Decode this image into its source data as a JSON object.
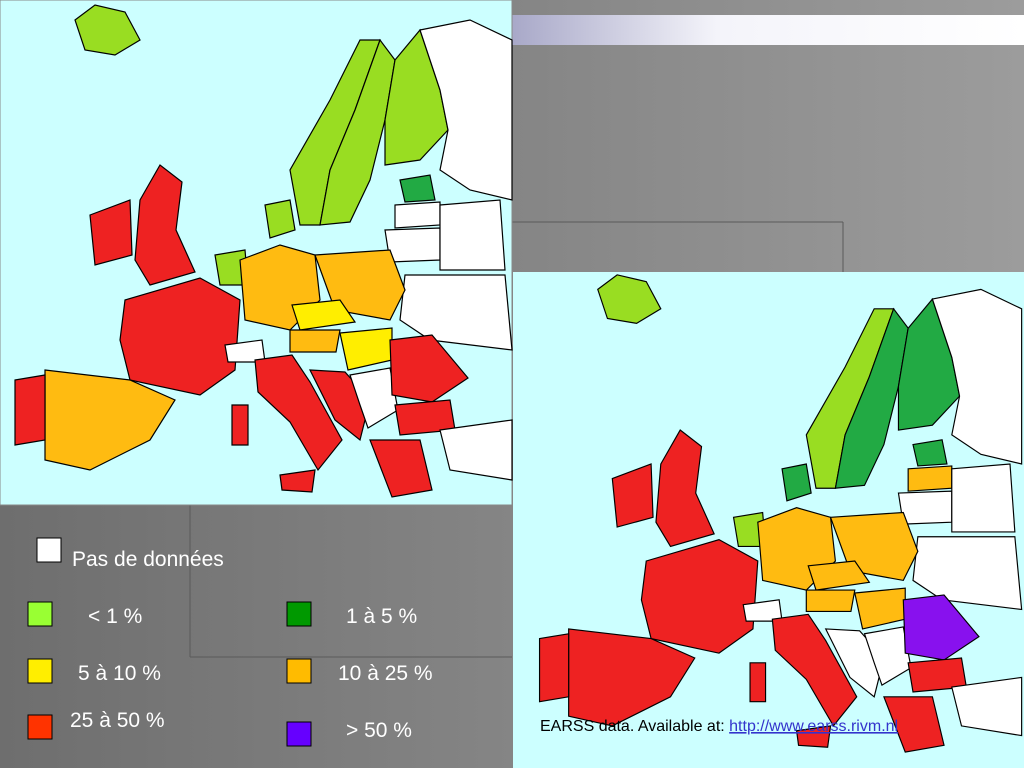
{
  "legend": {
    "items": [
      {
        "label": "Pas de données"
      },
      {
        "label": "< 1 %"
      },
      {
        "label": "1 à 5 %"
      },
      {
        "label": "5 à 10 %"
      },
      {
        "label": "10 à 25 %"
      },
      {
        "label": "25 à 50 %"
      },
      {
        "label": "> 50 %"
      }
    ]
  },
  "source": {
    "text": "EARSS data. Available at: ",
    "link": "http://www.earss.rivm.nl"
  }
}
